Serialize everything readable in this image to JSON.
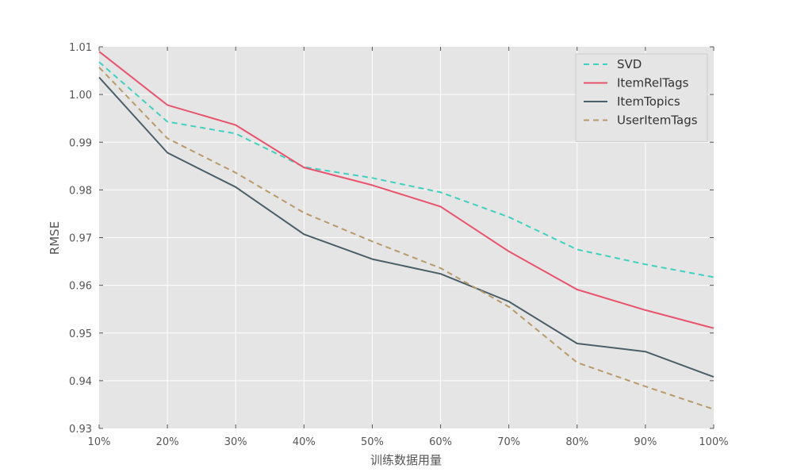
{
  "chart_data": {
    "type": "line",
    "title": "",
    "xlabel": "训练数据用量",
    "ylabel": "RMSE",
    "x": [
      "10%",
      "20%",
      "30%",
      "40%",
      "50%",
      "60%",
      "70%",
      "80%",
      "90%",
      "100%"
    ],
    "ylim": [
      0.93,
      1.01
    ],
    "yticks": [
      "0.93",
      "0.94",
      "0.95",
      "0.96",
      "0.97",
      "0.98",
      "0.99",
      "1.00",
      "1.01"
    ],
    "grid": true,
    "legend_position": "top-right",
    "series": [
      {
        "name": "SVD",
        "style": "dashed",
        "color": "#40d0c0",
        "values": [
          1.0068,
          0.9943,
          0.9918,
          0.9848,
          0.9825,
          0.9795,
          0.9743,
          0.9675,
          0.9644,
          0.9617
        ]
      },
      {
        "name": "ItemRelTags",
        "style": "solid",
        "color": "#e8546c",
        "values": [
          1.009,
          0.9978,
          0.9936,
          0.9847,
          0.981,
          0.9765,
          0.9671,
          0.9591,
          0.9548,
          0.951
        ]
      },
      {
        "name": "ItemTopics",
        "style": "solid",
        "color": "#4a5f69",
        "values": [
          1.0036,
          0.9878,
          0.9806,
          0.9707,
          0.9655,
          0.9624,
          0.9566,
          0.9478,
          0.9461,
          0.9408
        ]
      },
      {
        "name": "UserItemTags",
        "style": "dashed",
        "color": "#b89a6a",
        "values": [
          1.0057,
          0.9908,
          0.9836,
          0.9752,
          0.9692,
          0.9636,
          0.9555,
          0.9438,
          0.9388,
          0.934
        ]
      }
    ]
  }
}
